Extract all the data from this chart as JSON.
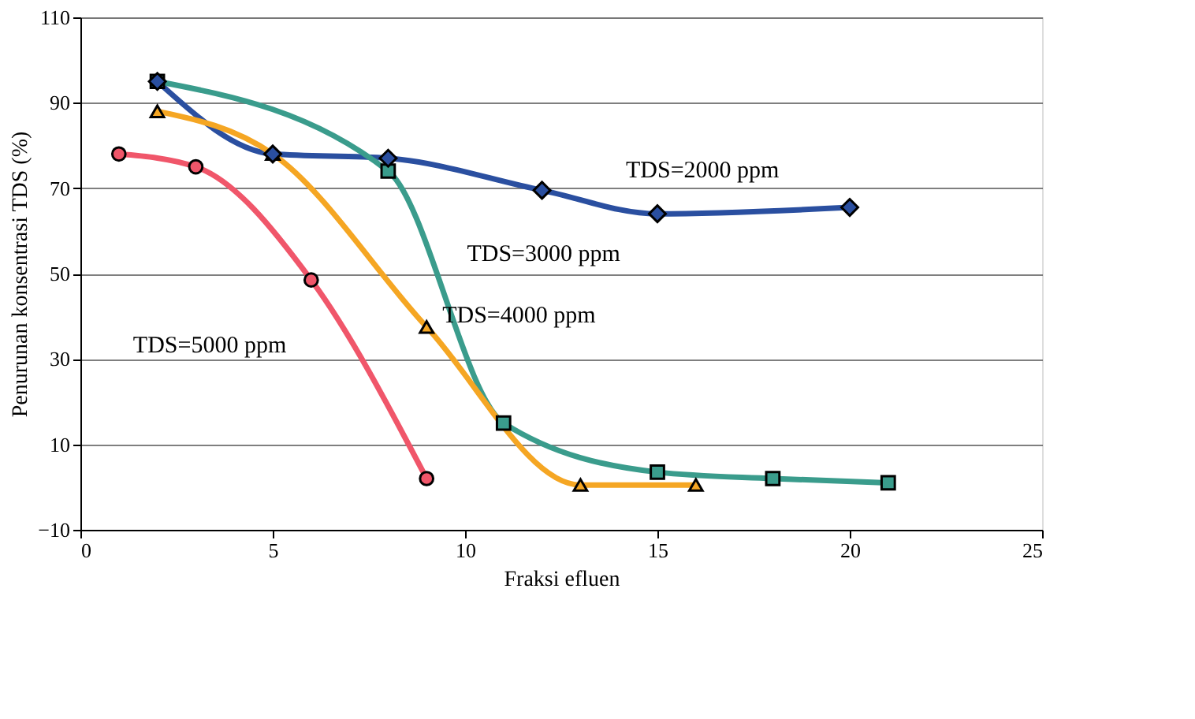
{
  "chart_data": {
    "type": "line",
    "xlabel": "Fraksi efluen",
    "ylabel": "Penurunan konsentrasi TDS (%)",
    "xlim": [
      0,
      25
    ],
    "xticks": [
      0,
      5,
      10,
      15,
      20,
      25
    ],
    "ylim": [
      -10,
      110
    ],
    "yticks": [
      -10,
      10,
      30,
      50,
      70,
      90,
      110
    ],
    "grid": "y",
    "legend": false,
    "series": [
      {
        "name": "TDS=2000 ppm",
        "color": "#2a4fa0",
        "marker": "diamond",
        "x": [
          2,
          5,
          8,
          12,
          15,
          20
        ],
        "values": [
          95,
          78,
          77,
          69.5,
          64,
          65.5
        ]
      },
      {
        "name": "TDS=3000 ppm",
        "color": "#3a9c8c",
        "marker": "square",
        "x": [
          2,
          8,
          11,
          15,
          18,
          21
        ],
        "values": [
          95,
          74,
          15,
          3.5,
          2,
          1
        ]
      },
      {
        "name": "TDS=4000 ppm",
        "color": "#f5a623",
        "marker": "triangle",
        "x": [
          2,
          5,
          9,
          13,
          16
        ],
        "values": [
          88,
          78,
          37.5,
          0.5,
          0.5
        ]
      },
      {
        "name": "TDS=5000 ppm",
        "color": "#f0566a",
        "marker": "circle",
        "x": [
          1,
          3,
          6,
          9
        ],
        "values": [
          78,
          75,
          48.5,
          2
        ]
      }
    ]
  }
}
